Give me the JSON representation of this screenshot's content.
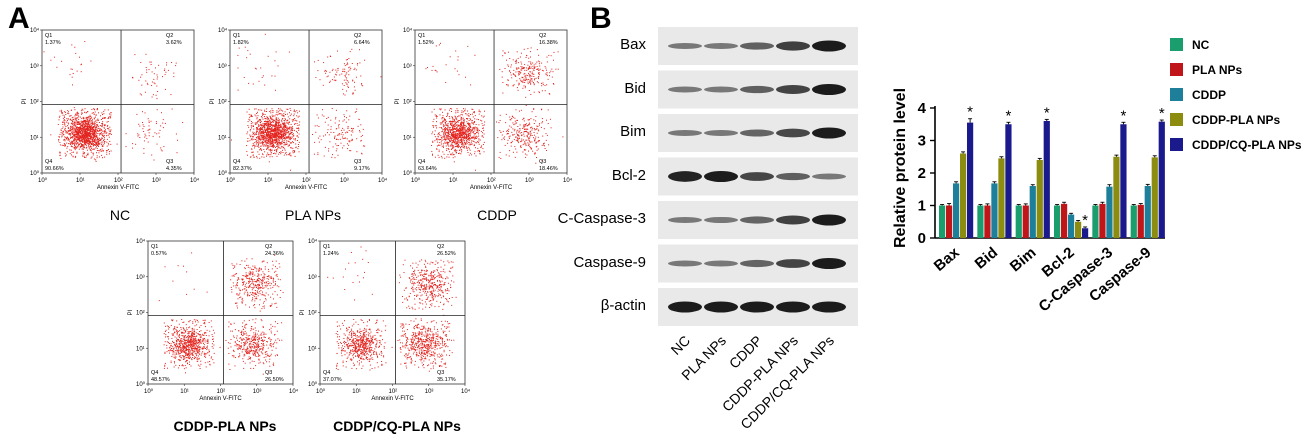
{
  "panel_a": {
    "letter": "A",
    "x_axis_label": "Annexin V-FITC",
    "y_axis_label": "PI",
    "x_ticks": [
      "10⁰",
      "10¹",
      "10²",
      "10³",
      "10⁴"
    ],
    "y_ticks": [
      "10⁰",
      "10¹",
      "10²",
      "10³",
      "10⁴"
    ],
    "plots": [
      {
        "title": "NC",
        "quadrants": {
          "q1": {
            "name": "Q1",
            "value": "1.37%"
          },
          "q2": {
            "name": "Q2",
            "value": "3.62%"
          },
          "q3": {
            "name": "Q3",
            "value": "4.35%"
          },
          "q4": {
            "name": "Q4",
            "value": "90.66%"
          }
        }
      },
      {
        "title": "PLA NPs",
        "quadrants": {
          "q1": {
            "name": "Q1",
            "value": "1.82%"
          },
          "q2": {
            "name": "Q2",
            "value": "6.64%"
          },
          "q3": {
            "name": "Q3",
            "value": "9.17%"
          },
          "q4": {
            "name": "Q4",
            "value": "82.37%"
          }
        }
      },
      {
        "title": "CDDP",
        "quadrants": {
          "q1": {
            "name": "Q1",
            "value": "1.52%"
          },
          "q2": {
            "name": "Q2",
            "value": "16.38%"
          },
          "q3": {
            "name": "Q3",
            "value": "18.46%"
          },
          "q4": {
            "name": "Q4",
            "value": "63.64%"
          }
        }
      },
      {
        "title": "CDDP-PLA NPs",
        "quadrants": {
          "q1": {
            "name": "Q1",
            "value": "0.57%"
          },
          "q2": {
            "name": "Q2",
            "value": "24.36%"
          },
          "q3": {
            "name": "Q3",
            "value": "26.50%"
          },
          "q4": {
            "name": "Q4",
            "value": "48.57%"
          }
        }
      },
      {
        "title": "CDDP/CQ-PLA NPs",
        "quadrants": {
          "q1": {
            "name": "Q1",
            "value": "1.24%"
          },
          "q2": {
            "name": "Q2",
            "value": "26.52%"
          },
          "q3": {
            "name": "Q3",
            "value": "35.17%"
          },
          "q4": {
            "name": "Q4",
            "value": "37.07%"
          }
        }
      }
    ]
  },
  "panel_b": {
    "letter": "B",
    "western_blot": {
      "proteins": [
        "Bax",
        "Bid",
        "Bim",
        "Bcl-2",
        "C-Caspase-3",
        "Caspase-9",
        "β-actin"
      ],
      "lanes": [
        "NC",
        "PLA NPs",
        "CDDP",
        "CDDP-PLA NPs",
        "CDDP/CQ-PLA NPs"
      ]
    },
    "significance_marker": "*"
  },
  "chart_data": {
    "type": "bar",
    "categories": [
      "Bax",
      "Bid",
      "Bim",
      "Bcl-2",
      "C-Caspase-3",
      "Caspase-9"
    ],
    "series": [
      {
        "name": "NC",
        "color": "#1a9e6e",
        "values": [
          1.0,
          1.0,
          1.0,
          1.0,
          1.0,
          1.0
        ],
        "errors": [
          0.03,
          0.03,
          0.03,
          0.03,
          0.03,
          0.03
        ]
      },
      {
        "name": "PLA NPs",
        "color": "#c0161a",
        "values": [
          1.0,
          1.0,
          1.0,
          1.05,
          1.05,
          1.02
        ],
        "errors": [
          0.06,
          0.05,
          0.05,
          0.05,
          0.05,
          0.04
        ]
      },
      {
        "name": "CDDP",
        "color": "#1d7f9a",
        "values": [
          1.68,
          1.68,
          1.6,
          0.72,
          1.58,
          1.6
        ],
        "errors": [
          0.05,
          0.05,
          0.04,
          0.04,
          0.06,
          0.05
        ]
      },
      {
        "name": "CDDP-PLA NPs",
        "color": "#8c8c10",
        "values": [
          2.6,
          2.45,
          2.4,
          0.5,
          2.5,
          2.48
        ],
        "errors": [
          0.05,
          0.05,
          0.05,
          0.04,
          0.05,
          0.05
        ]
      },
      {
        "name": "CDDP/CQ-PLA NPs",
        "color": "#1a1a8c",
        "values": [
          3.55,
          3.5,
          3.6,
          0.3,
          3.5,
          3.58
        ],
        "errors": [
          0.12,
          0.06,
          0.05,
          0.04,
          0.06,
          0.05
        ]
      }
    ],
    "significant": [
      true,
      true,
      true,
      true,
      true,
      true
    ],
    "ylabel": "Relative protein level",
    "xlabel": "",
    "ylim": [
      0,
      4
    ],
    "yticks": [
      0,
      1,
      2,
      3,
      4
    ],
    "legend_position": "top-right",
    "grid": false
  }
}
